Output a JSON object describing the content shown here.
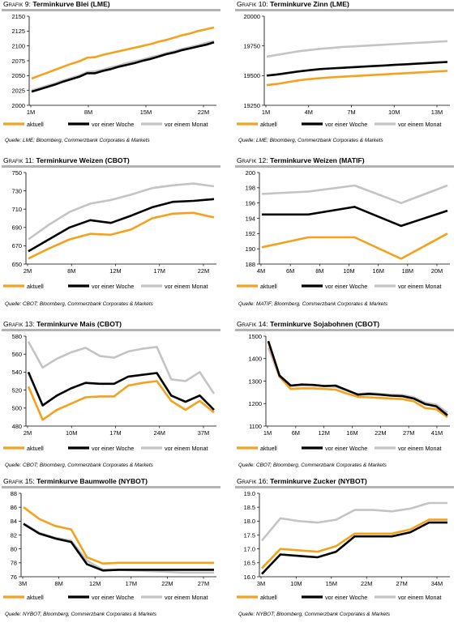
{
  "colors": {
    "aktuell": "#f5a11e",
    "woche": "#000000",
    "monat": "#c4c4c4",
    "axis": "#000000",
    "rule": "#b3b3b3"
  },
  "panels": [
    {
      "id": "g9",
      "prefix": "Grafik 9:",
      "title": "Terminkurve Blei (LME)",
      "source": "Quelle: LME; Bloomberg, Commerzbank Corporates & Markets",
      "legend": [
        "aktuell",
        "vor einer Woche",
        "vor einem Monat"
      ],
      "chart_data": {
        "type": "line",
        "xlabels": [
          "1M",
          "8M",
          "15M",
          "22M"
        ],
        "ylim": [
          2000,
          2150
        ],
        "yticks": [
          2000,
          2025,
          2050,
          2075,
          2100,
          2125,
          2150
        ],
        "series": [
          {
            "name": "aktuell",
            "values": [
              2045,
              2050,
              2055,
              2060,
              2065,
              2070,
              2074,
              2080,
              2081,
              2085,
              2088,
              2091,
              2094,
              2097,
              2100,
              2103,
              2107,
              2110,
              2114,
              2118,
              2121,
              2125,
              2128,
              2131
            ]
          },
          {
            "name": "vor einer Woche",
            "values": [
              2023,
              2027,
              2031,
              2035,
              2040,
              2044,
              2048,
              2054,
              2054,
              2058,
              2061,
              2065,
              2068,
              2071,
              2075,
              2078,
              2082,
              2086,
              2089,
              2093,
              2096,
              2099,
              2102,
              2106
            ]
          },
          {
            "name": "vor einem Monat",
            "values": [
              2025,
              2029,
              2033,
              2037,
              2042,
              2046,
              2050,
              2056,
              2057,
              2060,
              2064,
              2067,
              2071,
              2074,
              2077,
              2081,
              2084,
              2088,
              2091,
              2095,
              2098,
              2101,
              2105,
              2108
            ]
          }
        ]
      }
    },
    {
      "id": "g10",
      "prefix": "Grafik 10:",
      "title": "Terminkurve Zinn (LME)",
      "source": "Quelle: LME; Bloomberg, Commerzbank Corporates & Markets",
      "legend": [
        "aktuell",
        "vor einer Woche",
        "vor einem Monat"
      ],
      "chart_data": {
        "type": "line",
        "xlabels": [
          "1M",
          "4M",
          "7M",
          "10M",
          "13M"
        ],
        "ylim": [
          19250,
          20000
        ],
        "yticks": [
          19250,
          19500,
          19750,
          20000
        ],
        "series": [
          {
            "name": "aktuell",
            "values": [
              19420,
              19430,
              19445,
              19460,
              19470,
              19478,
              19485,
              19490,
              19495,
              19500,
              19505,
              19510,
              19515,
              19520,
              19525,
              19530,
              19535,
              19540
            ]
          },
          {
            "name": "vor einer Woche",
            "values": [
              19500,
              19510,
              19522,
              19535,
              19545,
              19555,
              19560,
              19565,
              19570,
              19575,
              19580,
              19585,
              19590,
              19595,
              19600,
              19605,
              19610,
              19615
            ]
          },
          {
            "name": "vor einem Monat",
            "values": [
              19660,
              19675,
              19690,
              19705,
              19715,
              19725,
              19732,
              19740,
              19745,
              19750,
              19755,
              19760,
              19765,
              19770,
              19775,
              19780,
              19785,
              19790
            ]
          }
        ]
      }
    },
    {
      "id": "g11",
      "prefix": "Grafik 11:",
      "title": "Terminkurve Weizen (CBOT)",
      "source": "Quelle: CBOT; Bloomberg, Commerzbank Corporates & Markets",
      "legend": [
        "aktuell",
        "vor einer Woche",
        "vor einem Monat"
      ],
      "chart_data": {
        "type": "line",
        "xlabels": [
          "2M",
          "8M",
          "12M",
          "17M",
          "22M"
        ],
        "ylim": [
          650,
          750
        ],
        "yticks": [
          650,
          670,
          690,
          710,
          730,
          750
        ],
        "series": [
          {
            "name": "aktuell",
            "values": [
              656,
              667,
              677,
              683,
              682,
              688,
              700,
              705,
              706,
              701
            ]
          },
          {
            "name": "vor einer Woche",
            "values": [
              664,
              677,
              690,
              698,
              695,
              703,
              712,
              718,
              719,
              721
            ]
          },
          {
            "name": "vor einem Monat",
            "values": [
              677,
              693,
              707,
              716,
              720,
              726,
              733,
              736,
              738,
              735
            ]
          }
        ]
      }
    },
    {
      "id": "g12",
      "prefix": "Grafik 12:",
      "title": "Terminkurve Weizen (MATIF)",
      "source": "Quelle: MATIF; Bloomberg, Commerzbank Corporates & Markets",
      "legend": [
        "aktuell",
        "vor einer Woche",
        "vor einem Monat"
      ],
      "chart_data": {
        "type": "line",
        "xlabels": [
          "4M",
          "6M",
          "8M",
          "10M",
          "16M",
          "18M",
          "20M"
        ],
        "ylim": [
          188,
          200
        ],
        "yticks": [
          188,
          190,
          192,
          194,
          196,
          198,
          200
        ],
        "series": [
          {
            "name": "aktuell",
            "values": [
              190.2,
              191.5,
              191.5,
              188.7,
              192.0
            ]
          },
          {
            "name": "vor einer Woche",
            "values": [
              194.5,
              194.5,
              195.5,
              193.0,
              195.0
            ]
          },
          {
            "name": "vor einem Monat",
            "values": [
              197.2,
              197.5,
              198.3,
              196.0,
              198.3
            ]
          }
        ]
      }
    },
    {
      "id": "g13",
      "prefix": "Grafik 13:",
      "title": "Terminkurve Mais (CBOT)",
      "source": "Quelle: CBOT; Bloomberg, Commerzbank Corporates & Markets",
      "legend": [
        "aktuell",
        "vor einer Woche",
        "vor einem Monat"
      ],
      "chart_data": {
        "type": "line",
        "xlabels": [
          "2M",
          "10M",
          "17M",
          "24M",
          "37M"
        ],
        "ylim": [
          480,
          580
        ],
        "yticks": [
          480,
          500,
          520,
          540,
          560,
          580
        ],
        "series": [
          {
            "name": "aktuell",
            "values": [
              524,
              487,
              498,
              505,
              512,
              513,
              513,
              525,
              528,
              530,
              508,
              498,
              508,
              495
            ]
          },
          {
            "name": "vor einer Woche",
            "values": [
              540,
              503,
              514,
              522,
              528,
              527,
              527,
              535,
              537,
              539,
              514,
              507,
              514,
              498
            ]
          },
          {
            "name": "vor einem Monat",
            "values": [
              574,
              545,
              555,
              562,
              567,
              558,
              556,
              563,
              566,
              568,
              532,
              530,
              540,
              516
            ]
          }
        ]
      }
    },
    {
      "id": "g14",
      "prefix": "Grafik 14:",
      "title": "Terminkurve Sojabohnen (CBOT)",
      "source": "Quelle: CBOT; Bloomberg, Commerzbank Corporates & Markets",
      "legend": [
        "aktuell",
        "vor einer Woche",
        "vor einem Monat"
      ],
      "chart_data": {
        "type": "line",
        "xlabels": [
          "1M",
          "6M",
          "12M",
          "16M",
          "22M",
          "27M",
          "41M"
        ],
        "ylim": [
          1100,
          1500
        ],
        "yticks": [
          1100,
          1200,
          1300,
          1400,
          1500
        ],
        "series": [
          {
            "name": "aktuell",
            "values": [
              1475,
              1320,
              1265,
              1268,
              1268,
              1265,
              1262,
              1245,
              1230,
              1228,
              1225,
              1222,
              1220,
              1210,
              1180,
              1175,
              1140
            ]
          },
          {
            "name": "vor einer Woche",
            "values": [
              1478,
              1325,
              1280,
              1285,
              1283,
              1278,
              1280,
              1260,
              1240,
              1243,
              1240,
              1235,
              1233,
              1222,
              1198,
              1188,
              1148
            ]
          },
          {
            "name": "vor einem Monat",
            "values": [
              1450,
              1318,
              1278,
              1282,
              1282,
              1278,
              1275,
              1258,
              1242,
              1247,
              1243,
              1240,
              1238,
              1228,
              1205,
              1195,
              1160
            ]
          }
        ]
      }
    },
    {
      "id": "g15",
      "prefix": "Grafik 15:",
      "title": "Terminkurve Baumwolle (NYBOT)",
      "source": "Quelle: NYBOT; Bloomberg, Commerzbank Corporates & Markets",
      "legend": [
        "aktuell",
        "vor einer Woche",
        "vor einem Monat"
      ],
      "chart_data": {
        "type": "line",
        "xlabels": [
          "3M",
          "8M",
          "12M",
          "17M",
          "22M",
          "27M"
        ],
        "ylim": [
          76,
          88
        ],
        "yticks": [
          76,
          78,
          80,
          82,
          84,
          86,
          88
        ],
        "series": [
          {
            "name": "aktuell",
            "values": [
              86.0,
              84.3,
              83.3,
              82.8,
              78.8,
              77.9,
              78.0,
              78.0,
              78.0,
              78.0,
              78.0,
              78.0,
              78.0
            ]
          },
          {
            "name": "vor einer Woche",
            "values": [
              83.6,
              82.2,
              81.5,
              81.0,
              77.8,
              76.9,
              77.0,
              77.0,
              77.0,
              77.0,
              77.0,
              77.0,
              77.0
            ]
          },
          {
            "name": "vor einem Monat",
            "values": [
              83.7,
              82.3,
              81.6,
              81.2,
              78.3,
              77.0,
              77.0,
              76.9,
              76.8,
              76.7,
              76.6,
              76.6,
              76.6
            ]
          }
        ]
      }
    },
    {
      "id": "g16",
      "prefix": "Grafik 16:",
      "title": "Terminkurve Zucker (NYBOT)",
      "source": "Quelle: NYBOT; Bloomberg, Commerzbank Corporates & Markets",
      "legend": [
        "aktuell",
        "vor einer Woche",
        "vor einem Monat"
      ],
      "chart_data": {
        "type": "line",
        "xlabels": [
          "3M",
          "10M",
          "15M",
          "22M",
          "27M",
          "34M"
        ],
        "ylim": [
          16.0,
          19.0
        ],
        "yticks": [
          16.0,
          16.5,
          17.0,
          17.5,
          18.0,
          18.5,
          19.0
        ],
        "series": [
          {
            "name": "aktuell",
            "values": [
              16.3,
              17.0,
              16.95,
              16.9,
              17.1,
              17.55,
              17.55,
              17.55,
              17.7,
              18.05,
              18.05
            ]
          },
          {
            "name": "vor einer Woche",
            "values": [
              16.1,
              16.8,
              16.75,
              16.7,
              16.9,
              17.45,
              17.45,
              17.45,
              17.6,
              17.95,
              17.95
            ]
          },
          {
            "name": "vor einem Monat",
            "values": [
              17.3,
              18.1,
              18.0,
              17.95,
              18.05,
              18.4,
              18.4,
              18.35,
              18.45,
              18.65,
              18.65
            ]
          }
        ]
      }
    }
  ]
}
